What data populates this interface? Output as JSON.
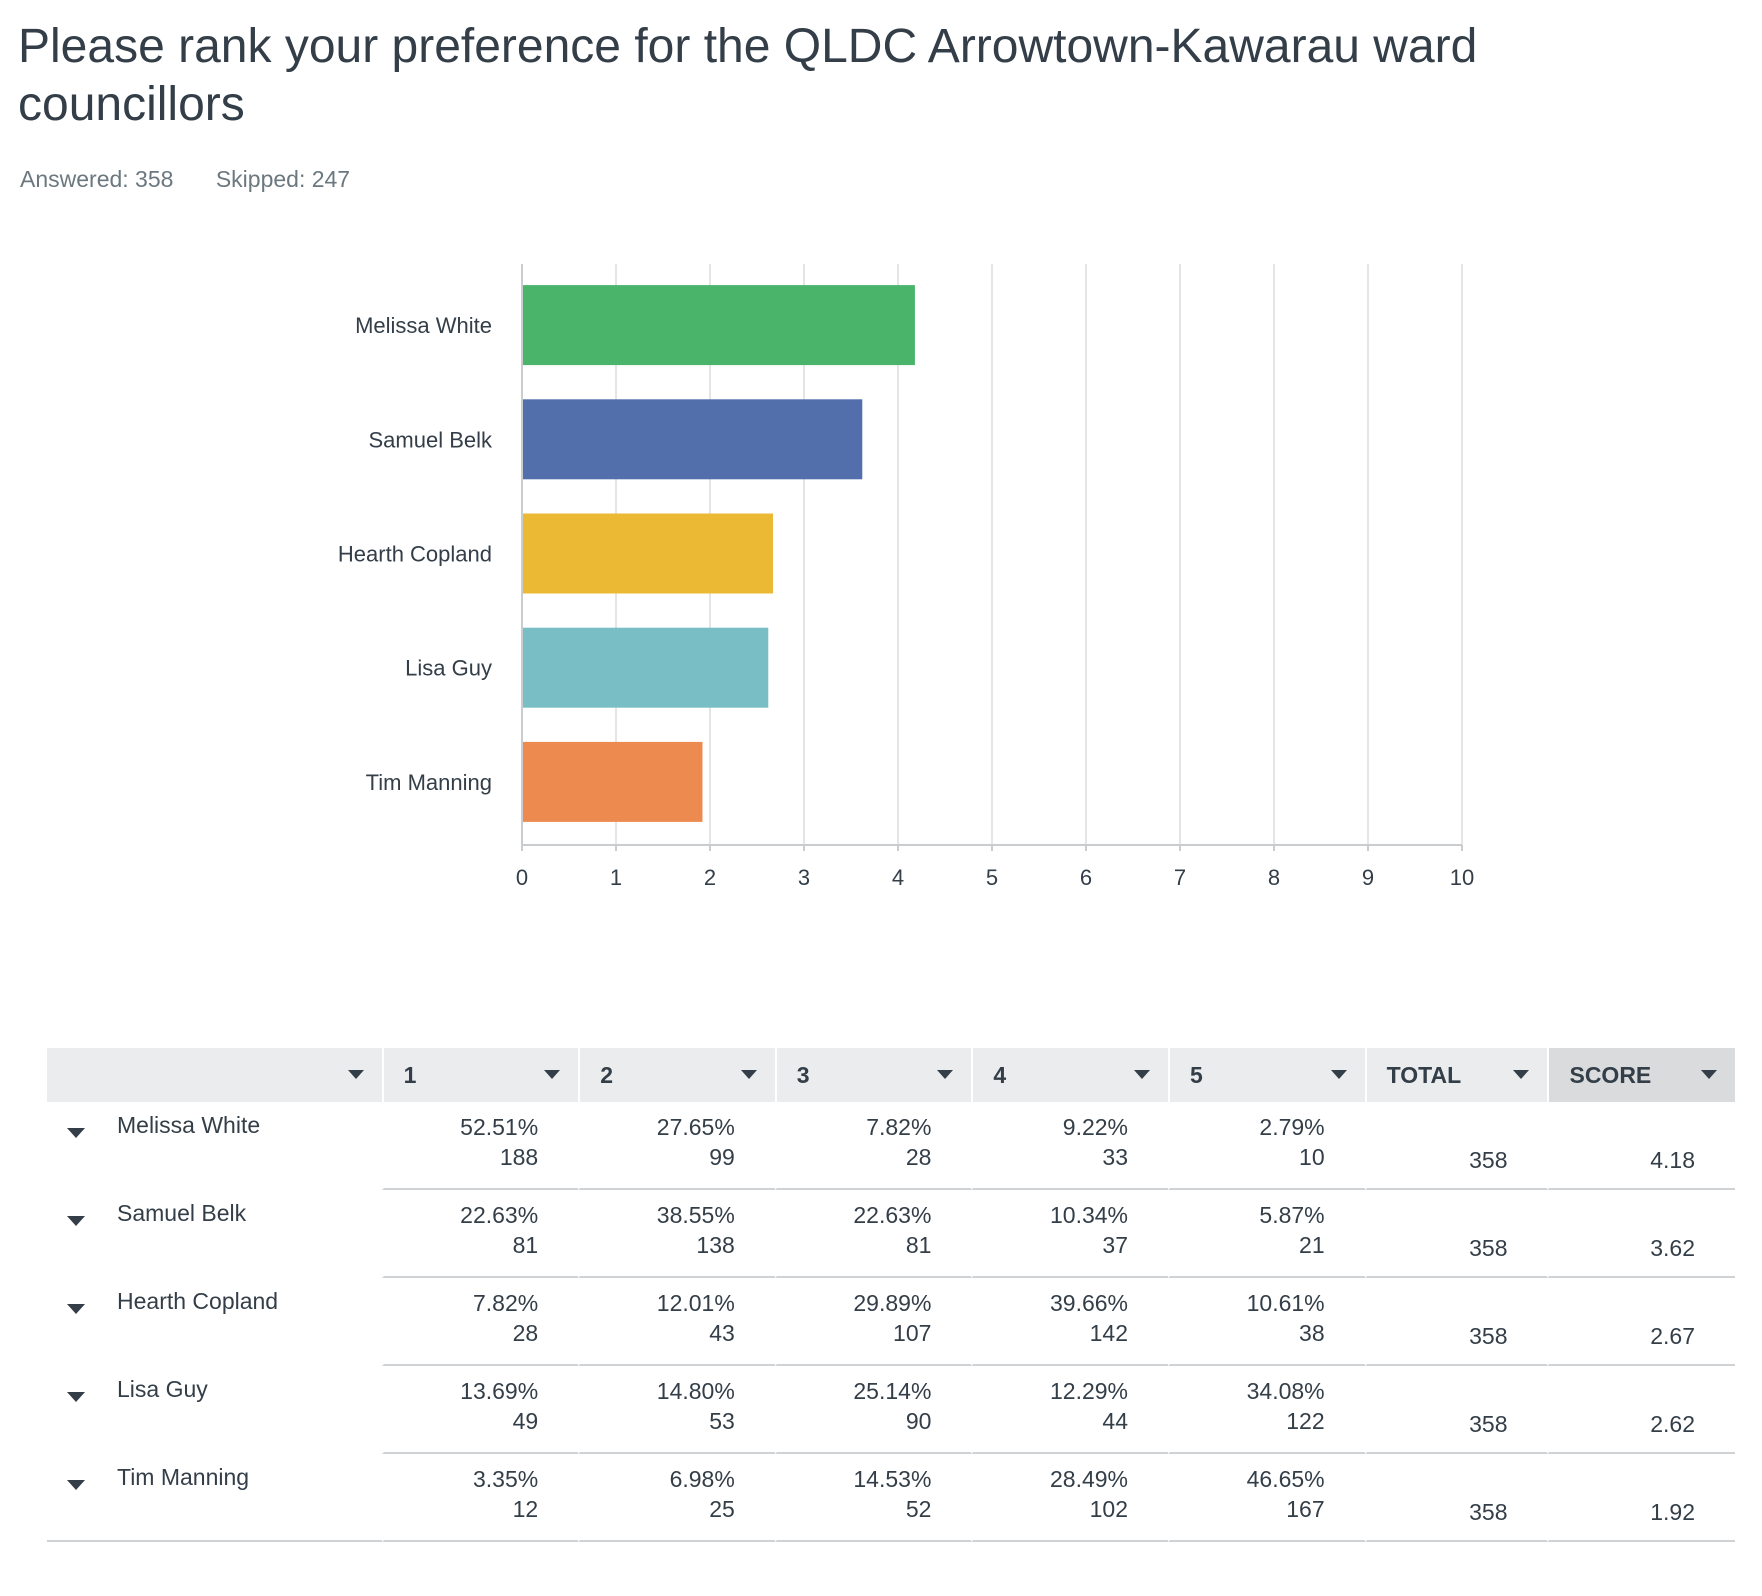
{
  "title": "Please rank your preference for the QLDC Arrowtown-Kawarau ward councillors",
  "answered_label": "Answered: 358",
  "skipped_label": "Skipped: 247",
  "colors": {
    "bars": [
      "#4ab46b",
      "#536fab",
      "#ebb934",
      "#79bec5",
      "#ec8a4f"
    ],
    "grid": "#e3e5e7",
    "axis": "#c9cdd0"
  },
  "chart_data": {
    "type": "bar",
    "orientation": "horizontal",
    "categories": [
      "Melissa White",
      "Samuel Belk",
      "Hearth Copland",
      "Lisa Guy",
      "Tim Manning"
    ],
    "values": [
      4.18,
      3.62,
      2.67,
      2.62,
      1.92
    ],
    "xlim": [
      0,
      10
    ],
    "xticks": [
      "0",
      "1",
      "2",
      "3",
      "4",
      "5",
      "6",
      "7",
      "8",
      "9",
      "10"
    ],
    "grid": true
  },
  "table": {
    "headers": [
      "",
      "1",
      "2",
      "3",
      "4",
      "5",
      "TOTAL",
      "SCORE"
    ],
    "rows": [
      {
        "name": "Melissa White",
        "cells": [
          {
            "pct": "52.51%",
            "n": "188"
          },
          {
            "pct": "27.65%",
            "n": "99"
          },
          {
            "pct": "7.82%",
            "n": "28"
          },
          {
            "pct": "9.22%",
            "n": "33"
          },
          {
            "pct": "2.79%",
            "n": "10"
          }
        ],
        "total": "358",
        "score": "4.18"
      },
      {
        "name": "Samuel Belk",
        "cells": [
          {
            "pct": "22.63%",
            "n": "81"
          },
          {
            "pct": "38.55%",
            "n": "138"
          },
          {
            "pct": "22.63%",
            "n": "81"
          },
          {
            "pct": "10.34%",
            "n": "37"
          },
          {
            "pct": "5.87%",
            "n": "21"
          }
        ],
        "total": "358",
        "score": "3.62"
      },
      {
        "name": "Hearth Copland",
        "cells": [
          {
            "pct": "7.82%",
            "n": "28"
          },
          {
            "pct": "12.01%",
            "n": "43"
          },
          {
            "pct": "29.89%",
            "n": "107"
          },
          {
            "pct": "39.66%",
            "n": "142"
          },
          {
            "pct": "10.61%",
            "n": "38"
          }
        ],
        "total": "358",
        "score": "2.67"
      },
      {
        "name": "Lisa Guy",
        "cells": [
          {
            "pct": "13.69%",
            "n": "49"
          },
          {
            "pct": "14.80%",
            "n": "53"
          },
          {
            "pct": "25.14%",
            "n": "90"
          },
          {
            "pct": "12.29%",
            "n": "44"
          },
          {
            "pct": "34.08%",
            "n": "122"
          }
        ],
        "total": "358",
        "score": "2.62"
      },
      {
        "name": "Tim Manning",
        "cells": [
          {
            "pct": "3.35%",
            "n": "12"
          },
          {
            "pct": "6.98%",
            "n": "25"
          },
          {
            "pct": "14.53%",
            "n": "52"
          },
          {
            "pct": "28.49%",
            "n": "102"
          },
          {
            "pct": "46.65%",
            "n": "167"
          }
        ],
        "total": "358",
        "score": "1.92"
      }
    ]
  }
}
